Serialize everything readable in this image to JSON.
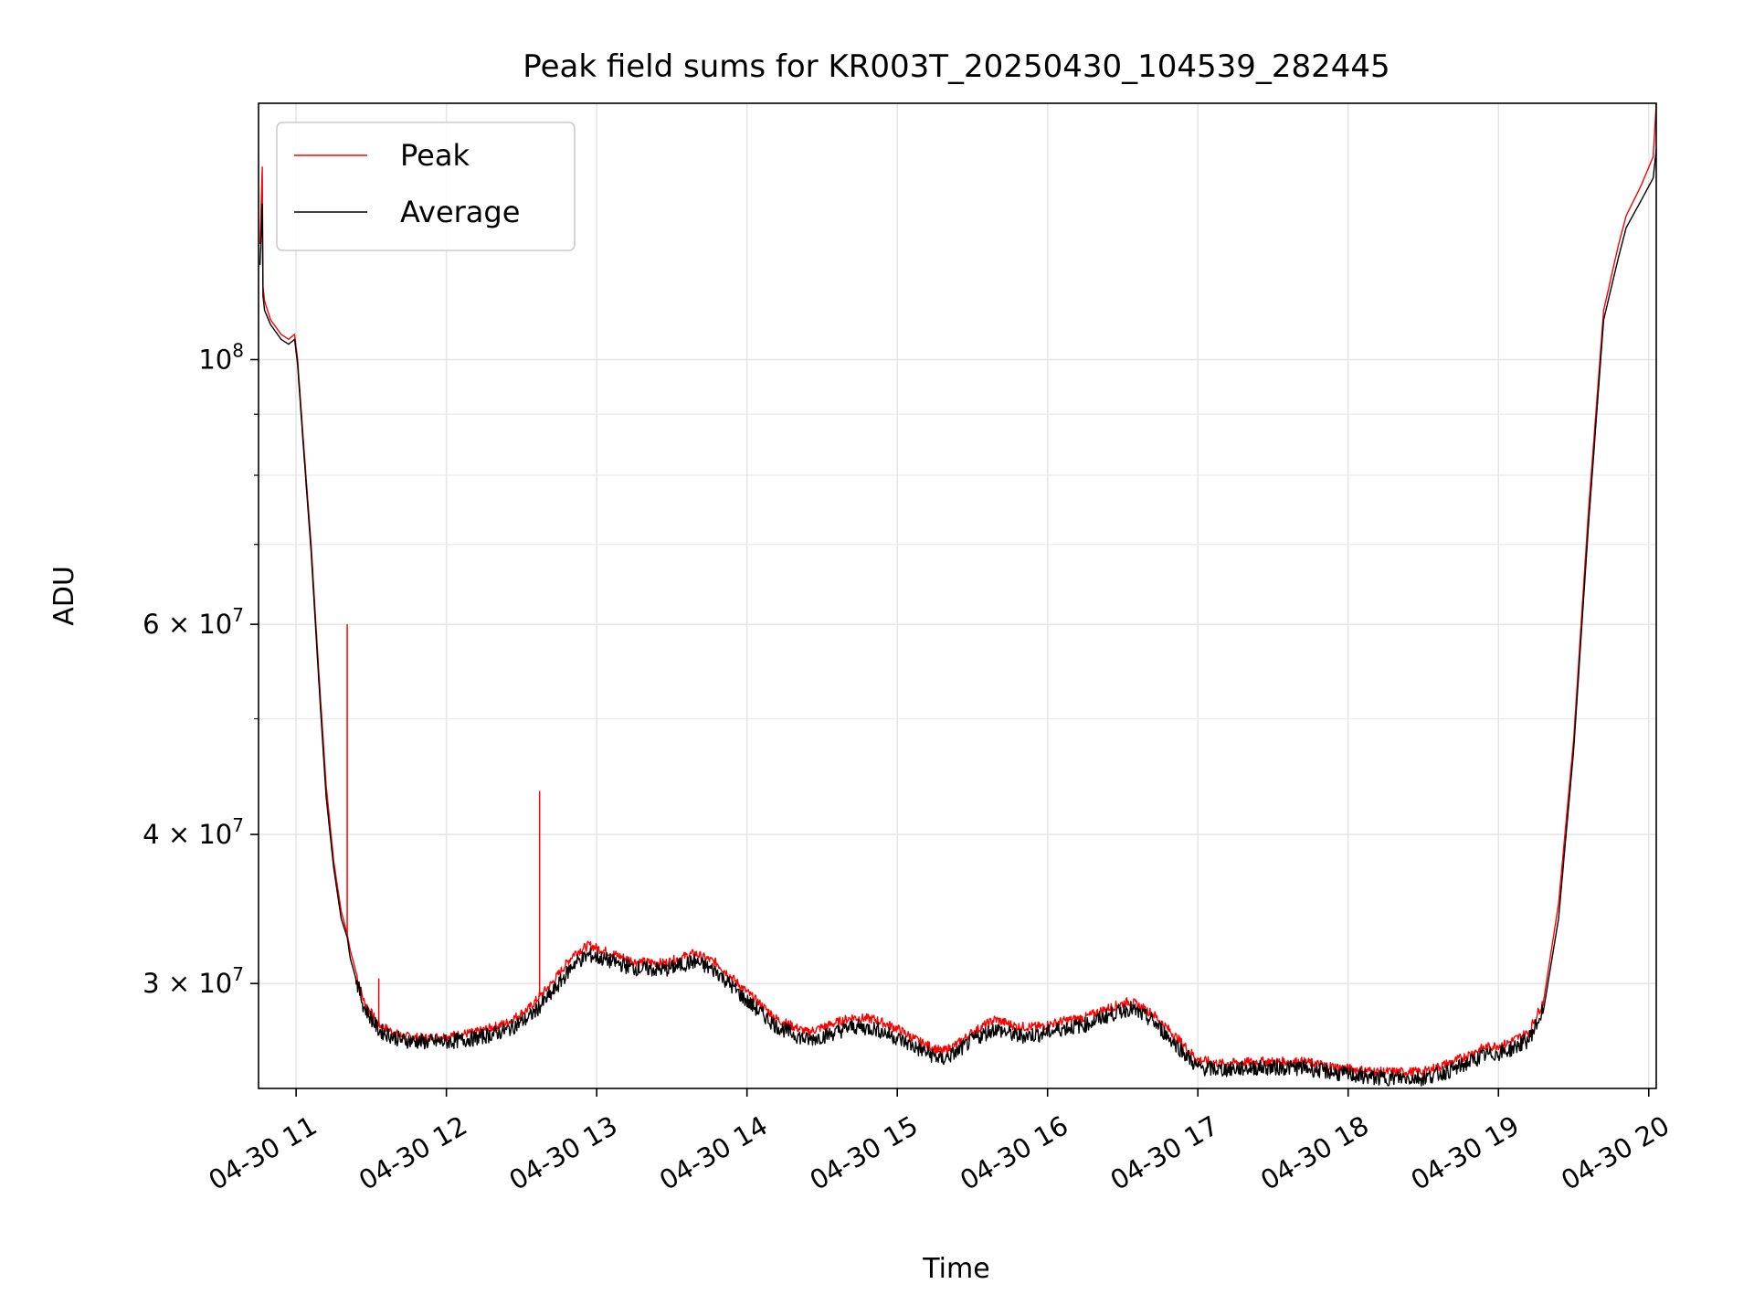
{
  "chart_data": {
    "type": "line",
    "title": "Peak field sums for KR003T_20250430_104539_282445",
    "xlabel": "Time",
    "ylabel": "ADU",
    "x_unit": "hour of 2025-04-30",
    "xlim": [
      10.75,
      20.05
    ],
    "y_scale": "log",
    "ylim": [
      24500000,
      164000000
    ],
    "grid": true,
    "legend_position": "top-left",
    "x_ticks": [
      {
        "value": 11,
        "label": "04-30 11"
      },
      {
        "value": 12,
        "label": "04-30 12"
      },
      {
        "value": 13,
        "label": "04-30 13"
      },
      {
        "value": 14,
        "label": "04-30 14"
      },
      {
        "value": 15,
        "label": "04-30 15"
      },
      {
        "value": 16,
        "label": "04-30 16"
      },
      {
        "value": 17,
        "label": "04-30 17"
      },
      {
        "value": 18,
        "label": "04-30 18"
      },
      {
        "value": 19,
        "label": "04-30 19"
      },
      {
        "value": 20,
        "label": "04-30 20"
      }
    ],
    "y_ticks": [
      {
        "value": 30000000,
        "base": "3 × 10",
        "exp": "7"
      },
      {
        "value": 40000000,
        "base": "4 × 10",
        "exp": "7"
      },
      {
        "value": 60000000,
        "base": "6 × 10",
        "exp": "7"
      },
      {
        "value": 100000000,
        "base": "10",
        "exp": "8"
      }
    ],
    "y_minor_ticks": [
      50000000,
      70000000,
      80000000,
      90000000
    ],
    "series": [
      {
        "name": "Peak",
        "color": "#ff0000",
        "x": [
          10.76,
          10.775,
          10.78,
          10.79,
          10.83,
          10.9,
          10.95,
          10.99,
          11.01,
          11.05,
          11.1,
          11.15,
          11.2,
          11.25,
          11.3,
          11.34,
          11.36,
          11.45,
          11.55,
          11.7,
          11.85,
          12.0,
          12.2,
          12.4,
          12.55,
          12.7,
          12.85,
          12.95,
          13.1,
          13.25,
          13.45,
          13.65,
          13.8,
          14.0,
          14.2,
          14.4,
          14.55,
          14.7,
          14.85,
          15.0,
          15.15,
          15.3,
          15.4,
          15.5,
          15.65,
          15.8,
          15.95,
          16.1,
          16.25,
          16.4,
          16.55,
          16.7,
          16.85,
          17.0,
          17.15,
          17.4,
          17.7,
          17.95,
          18.2,
          18.5,
          18.7,
          18.9,
          19.05,
          19.2,
          19.3,
          19.4,
          19.5,
          19.6,
          19.7,
          19.8,
          19.85,
          19.95,
          20.03,
          20.05
        ],
        "y": [
          125000000,
          145000000,
          115000000,
          112000000,
          108000000,
          105000000,
          104000000,
          105000000,
          100000000,
          85000000,
          70000000,
          55000000,
          44000000,
          38000000,
          34500000,
          33000000,
          32000000,
          29000000,
          27700000,
          27100000,
          27000000,
          27100000,
          27300000,
          27800000,
          28600000,
          30000000,
          31800000,
          32300000,
          31800000,
          31300000,
          31200000,
          31800000,
          31200000,
          29500000,
          28000000,
          27300000,
          27700000,
          28100000,
          28000000,
          27500000,
          26800000,
          26300000,
          26700000,
          27300000,
          28000000,
          27600000,
          27600000,
          27900000,
          28100000,
          28600000,
          29000000,
          28300000,
          27100000,
          25900000,
          25700000,
          25800000,
          25800000,
          25500000,
          25300000,
          25300000,
          25800000,
          26500000,
          26700000,
          27300000,
          29000000,
          35000000,
          48000000,
          75000000,
          110000000,
          125000000,
          132000000,
          140000000,
          148000000,
          164000000
        ]
      },
      {
        "name": "Average",
        "color": "#000000",
        "x": [
          10.76,
          10.775,
          10.78,
          10.79,
          10.83,
          10.9,
          10.95,
          10.99,
          11.01,
          11.05,
          11.1,
          11.15,
          11.2,
          11.25,
          11.3,
          11.34,
          11.36,
          11.45,
          11.55,
          11.7,
          11.85,
          12.0,
          12.2,
          12.4,
          12.55,
          12.7,
          12.85,
          12.95,
          13.1,
          13.25,
          13.45,
          13.65,
          13.8,
          14.0,
          14.2,
          14.4,
          14.55,
          14.7,
          14.85,
          15.0,
          15.15,
          15.3,
          15.4,
          15.5,
          15.65,
          15.8,
          15.95,
          16.1,
          16.25,
          16.4,
          16.55,
          16.7,
          16.85,
          17.0,
          17.15,
          17.4,
          17.7,
          17.95,
          18.2,
          18.5,
          18.7,
          18.9,
          19.05,
          19.2,
          19.3,
          19.4,
          19.5,
          19.6,
          19.7,
          19.8,
          19.85,
          19.95,
          20.03,
          20.05
        ],
        "y": [
          120000000,
          135000000,
          113000000,
          110000000,
          107000000,
          104000000,
          103000000,
          104000000,
          99000000,
          84000000,
          69000000,
          54000000,
          43000000,
          37500000,
          34000000,
          32800000,
          31500000,
          28700000,
          27400000,
          26900000,
          26800000,
          26800000,
          27000000,
          27400000,
          28100000,
          29400000,
          31200000,
          31700000,
          31300000,
          30900000,
          30800000,
          31300000,
          30700000,
          29000000,
          27600000,
          26900000,
          27200000,
          27600000,
          27500000,
          27000000,
          26400000,
          25900000,
          26300000,
          26900000,
          27500000,
          27100000,
          27200000,
          27500000,
          27700000,
          28200000,
          28600000,
          27900000,
          26700000,
          25500000,
          25400000,
          25500000,
          25500000,
          25200000,
          25000000,
          25000000,
          25400000,
          26100000,
          26300000,
          26900000,
          28500000,
          34000000,
          47000000,
          73000000,
          108000000,
          122000000,
          129000000,
          136000000,
          142000000,
          150000000
        ]
      }
    ],
    "spikes": [
      {
        "series": "Peak",
        "x": 11.34,
        "y": 60000000
      },
      {
        "series": "Peak",
        "x": 12.62,
        "y": 43500000
      },
      {
        "series": "Peak",
        "x": 11.55,
        "y": 30300000
      }
    ]
  }
}
